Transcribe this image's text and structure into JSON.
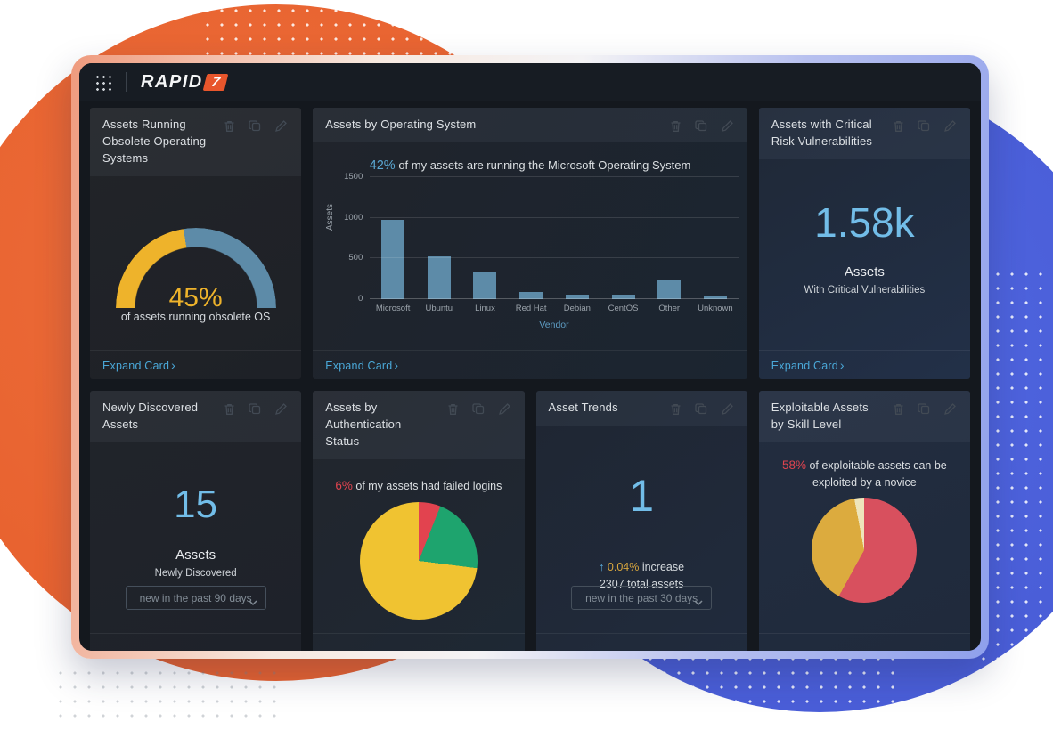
{
  "ui": {
    "expand_label": "Expand Card",
    "expand_chevron": "›",
    "accent_blue": "#72bde8",
    "link_blue": "#4aa8d8"
  },
  "header": {
    "logo_text": "RAPID",
    "logo_seven": "7"
  },
  "cards": {
    "obsolete_os": {
      "title": "Assets Running Obsolete Operating Systems",
      "gauge": {
        "percent": 45,
        "display": "45%",
        "caption": "of assets running obsolete OS",
        "fill_color": "#eeb32b",
        "rest_color": "#5d8ba8"
      }
    },
    "assets_by_os": {
      "title": "Assets by Operating System",
      "annotation_highlight": "42%",
      "annotation_text": "of my assets are running the Microsoft Operating System",
      "chart_data": {
        "type": "bar",
        "categories": [
          "Microsoft",
          "Ubuntu",
          "Linux",
          "Red Hat",
          "Debian",
          "CentOS",
          "Other",
          "Unknown"
        ],
        "values": [
          970,
          530,
          340,
          90,
          55,
          55,
          225,
          40
        ],
        "bar_color": "#5d8ba8",
        "xlabel": "Vendor",
        "ylabel": "Assets",
        "yticks": [
          0,
          500,
          1000,
          1500
        ],
        "ylim": [
          0,
          1500
        ],
        "grid": true
      }
    },
    "critical": {
      "title": "Assets with Critical Risk Vulnerabilities",
      "value": "1.58k",
      "label": "Assets",
      "sublabel": "With Critical Vulnerabilities"
    },
    "newly_discovered": {
      "title": "Newly Discovered Assets",
      "value": "15",
      "label": "Assets",
      "sublabel": "Newly Discovered",
      "dropdown_value": "new in the past 90 days"
    },
    "auth_status": {
      "title": "Assets by Authentication Status",
      "annotation_highlight": "6%",
      "annotation_text": "of my assets had failed logins",
      "chart_data": {
        "type": "pie",
        "slices": [
          {
            "value": 6,
            "color": "#e2434f"
          },
          {
            "value": 21,
            "color": "#1ea46e"
          },
          {
            "value": 73,
            "color": "#f0c331"
          }
        ]
      }
    },
    "asset_trends": {
      "title": "Asset Trends",
      "value": "1",
      "arrow": "↑",
      "change": "0.04%",
      "change_text": "increase",
      "total_text": "2307 total assets",
      "dropdown_value": "new in the past 30 days"
    },
    "exploitable": {
      "title": "Exploitable Assets by Skill Level",
      "annotation_highlight": "58%",
      "annotation_text": "of exploitable assets can be exploited by a novice",
      "chart_data": {
        "type": "pie",
        "slices": [
          {
            "value": 58,
            "color": "#d8505e"
          },
          {
            "value": 39,
            "color": "#dcab3e"
          },
          {
            "value": 3,
            "color": "#eee5bb"
          }
        ]
      }
    }
  }
}
